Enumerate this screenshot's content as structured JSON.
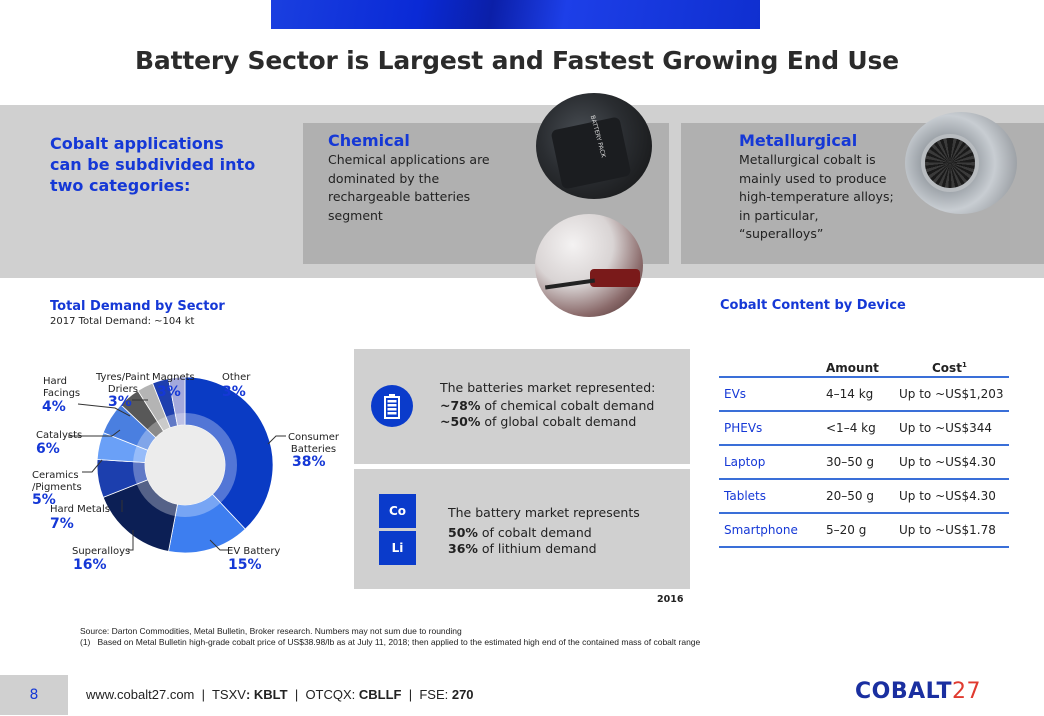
{
  "header": {
    "title": "Battery Sector is Largest and Fastest Growing End Use"
  },
  "intro": {
    "text_lines": [
      "Cobalt applications",
      "can be subdivided into",
      "two categories:"
    ]
  },
  "categories": {
    "chemical": {
      "title": "Chemical",
      "text_lines": [
        "Chemical applications are",
        "dominated by the",
        "rechargeable batteries",
        "segment"
      ]
    },
    "metallurgical": {
      "title": "Metallurgical",
      "text_lines": [
        "Metallurgical cobalt is",
        "mainly used to produce",
        "high-temperature alloys;",
        "in particular,",
        "“superalloys”"
      ]
    },
    "photos": {
      "battery_label": "BATTERY PACK"
    }
  },
  "demand": {
    "title": "Total Demand by Sector",
    "subtitle": "2017 Total Demand: ~104 kt"
  },
  "chart_data": {
    "type": "pie",
    "title": "Total Demand by Sector",
    "subtitle": "2017 Total Demand: ~104 kt",
    "donut": true,
    "unit": "%",
    "categories": [
      "Consumer Batteries",
      "EV Battery",
      "Superalloys",
      "Hard Metals",
      "Ceramics /Pigments",
      "Catalysts",
      "Hard Facings",
      "Tyres/Paint Driers",
      "Magnets",
      "Other"
    ],
    "values": [
      38,
      15,
      16,
      7,
      5,
      6,
      4,
      3,
      3,
      3
    ],
    "labels": [
      "38%",
      "15%",
      "16%",
      "7%",
      "5%",
      "6%",
      "4%",
      "3%",
      "3%",
      "3%"
    ],
    "colors": [
      "#0a3bc4",
      "#3d7ef0",
      "#0c1f55",
      "#1c3fae",
      "#6aa0f7",
      "#4a7fe0",
      "#585858",
      "#b4b4b4",
      "#1e3fae",
      "#a3a8dc"
    ],
    "legend": "none"
  },
  "batteries_box": {
    "icon": "battery-icon",
    "line1": "The batteries market represented:",
    "stat1_value": "~78%",
    "stat1_text": " of chemical cobalt demand",
    "stat2_value": "~50%",
    "stat2_text": " of global cobalt demand"
  },
  "battery_box2": {
    "element1": "Co",
    "element2": "Li",
    "line1": "The battery market represents",
    "stat1_value": "50%",
    "stat1_text": " of cobalt demand",
    "stat2_value": "36%",
    "stat2_text": " of lithium demand",
    "year": "2016"
  },
  "device_table": {
    "title": "Cobalt Content by Device",
    "headers": {
      "amount": "Amount",
      "cost": "Cost",
      "cost_footnote": "1"
    },
    "rows": [
      {
        "device": "EVs",
        "amount": "4–14 kg",
        "cost": "Up to ~US$1,203"
      },
      {
        "device": "PHEVs",
        "amount": "<1–4 kg",
        "cost": "Up to ~US$344"
      },
      {
        "device": "Laptop",
        "amount": "30–50 g",
        "cost": "Up to ~US$4.30"
      },
      {
        "device": "Tablets",
        "amount": "20–50 g",
        "cost": "Up to ~US$4.30"
      },
      {
        "device": "Smartphone",
        "amount": "5–20 g",
        "cost": "Up to ~US$1.78"
      }
    ]
  },
  "footnotes": {
    "source": "Source: Darton Commodities, Metal Bulletin, Broker research. Numbers may not sum due to rounding",
    "note1": "(1)   Based on Metal Bulletin high-grade cobalt price of US$38.98/lb as at July 11, 2018; then applied to the estimated high end of the contained mass of cobalt range"
  },
  "footer": {
    "page_number": "8",
    "website": "www.cobalt27.com",
    "sep": "  |  ",
    "tsxv_label": "TSXV",
    "tsxv_value": "KBLT",
    "otcqx_label": "OTCQX: ",
    "otcqx_value": "CBLLF",
    "fse_label": "FSE: ",
    "fse_value": "270",
    "logo_text": "COBALT",
    "logo_number": "27"
  },
  "colors": {
    "accent_blue": "#1538d6",
    "logo_red": "#e03a2f",
    "panel_gray": "#b0b0b0",
    "band_gray": "#d0d0d0"
  }
}
